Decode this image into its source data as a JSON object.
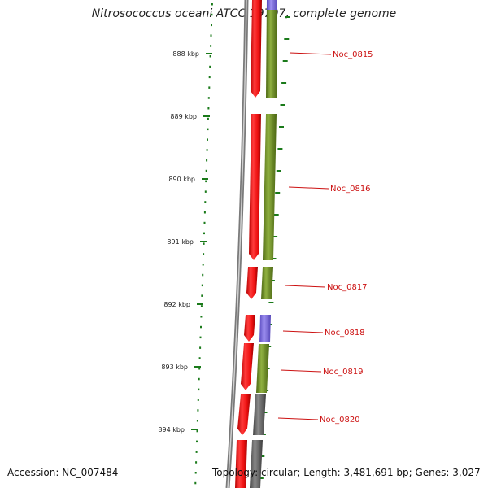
{
  "title": "Nitrosococcus oceani ATCC 19707, complete genome",
  "footer": {
    "accession": "Accession: NC_007484",
    "summary": "Topology: circular; Length: 3,481,691 bp; Genes: 3,027"
  },
  "colors": {
    "backbone": "#888888",
    "tick": "#1a7a1a",
    "forward_cds": "#ee1111",
    "cog_green": "#6b8e23",
    "cog_purple": "#7b68dd",
    "cog_gray": "#666666",
    "gene_label": "#cc1111"
  },
  "kbp_ticks": [
    "888 kbp",
    "889 kbp",
    "890 kbp",
    "891 kbp",
    "892 kbp",
    "893 kbp",
    "894 kbp"
  ],
  "genes": [
    {
      "name": "Noc_0815",
      "strand": "+",
      "cog_class": "cog_green"
    },
    {
      "name": "Noc_0816",
      "strand": "+",
      "cog_class": "cog_green"
    },
    {
      "name": "Noc_0817",
      "strand": "+",
      "cog_class": "cog_green"
    },
    {
      "name": "Noc_0818",
      "strand": "+",
      "cog_class": "cog_purple"
    },
    {
      "name": "Noc_0819",
      "strand": "+",
      "cog_class": "cog_green"
    },
    {
      "name": "Noc_0820",
      "strand": "+",
      "cog_class": "cog_gray"
    }
  ]
}
